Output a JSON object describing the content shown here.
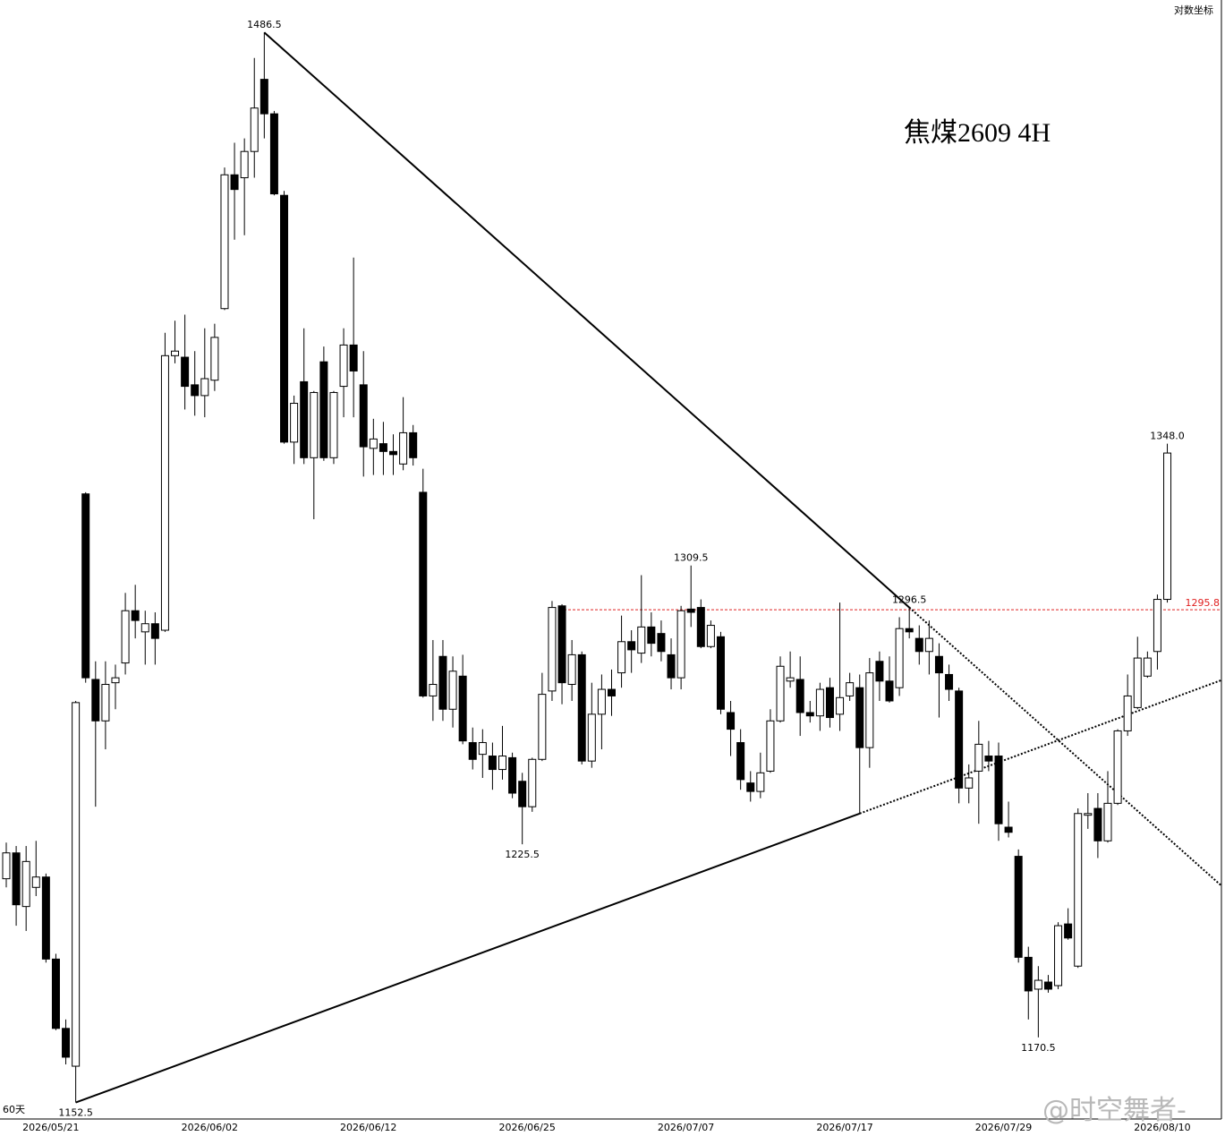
{
  "chart_data": {
    "type": "candlestick",
    "title": "焦煤2609  4H",
    "scale_label": "对数坐标",
    "period_label": "60天",
    "watermark": "@时空舞者-",
    "log": true,
    "ylim": [
      1148,
      1498
    ],
    "up_color": "#ffffff",
    "down_color": "#000000",
    "categories": [
      null,
      null,
      null,
      null,
      "2026/05/21",
      null,
      null,
      null,
      null,
      null,
      null,
      null,
      null,
      null,
      null,
      null,
      null,
      null,
      null,
      null,
      "2026/06/02",
      null,
      null,
      null,
      null,
      null,
      null,
      null,
      null,
      null,
      null,
      null,
      null,
      null,
      null,
      null,
      "2026/06/12",
      null,
      null,
      null,
      null,
      null,
      null,
      null,
      null,
      null,
      null,
      null,
      null,
      null,
      null,
      null,
      "2026/06/25",
      null,
      null,
      null,
      null,
      null,
      null,
      null,
      null,
      null,
      null,
      null,
      null,
      null,
      null,
      null,
      "2026/07/07",
      null,
      null,
      null,
      null,
      null,
      null,
      null,
      null,
      null,
      null,
      null,
      null,
      null,
      null,
      null,
      "2026/07/17",
      null,
      null,
      null,
      null,
      null,
      null,
      null,
      null,
      null,
      null,
      null,
      null,
      null,
      null,
      null,
      "2026/07/29",
      null,
      null,
      null,
      null,
      null,
      null,
      null,
      null,
      null,
      null,
      null,
      null,
      null,
      null,
      null,
      "2026/08/10",
      null
    ],
    "candles": [
      [
        1215.5,
        1226,
        1213,
        1223
      ],
      [
        1223,
        1225,
        1202,
        1208
      ],
      [
        1207.5,
        1225,
        1200.5,
        1220.5
      ],
      [
        1213,
        1226.5,
        1210.5,
        1216
      ],
      [
        1216,
        1217,
        1191.5,
        1192.5
      ],
      [
        1192.5,
        1194,
        1172.5,
        1173
      ],
      [
        1173,
        1175.5,
        1163,
        1165
      ],
      [
        1162.5,
        1268,
        1152.5,
        1267.5
      ],
      [
        1332,
        1332.5,
        1273.5,
        1275
      ],
      [
        1274.5,
        1280,
        1236.5,
        1262
      ],
      [
        1262,
        1280,
        1253.5,
        1273
      ],
      [
        1273.5,
        1279,
        1265.5,
        1275
      ],
      [
        1279.5,
        1301,
        1276,
        1295.5
      ],
      [
        1295.5,
        1303.5,
        1287,
        1292.5
      ],
      [
        1289,
        1295.5,
        1279,
        1291.5
      ],
      [
        1291.5,
        1295,
        1279,
        1287
      ],
      [
        1289.5,
        1384,
        1289,
        1376.5
      ],
      [
        1376.5,
        1388,
        1374,
        1378
      ],
      [
        1376,
        1390,
        1359,
        1366.5
      ],
      [
        1367,
        1378,
        1357,
        1363.5
      ],
      [
        1363.5,
        1385.5,
        1356.5,
        1369
      ],
      [
        1368.5,
        1387,
        1365,
        1382.5
      ],
      [
        1392,
        1439.5,
        1391.5,
        1437
      ],
      [
        1437,
        1448,
        1415,
        1432
      ],
      [
        1436,
        1449.5,
        1416.5,
        1445
      ],
      [
        1445,
        1477.5,
        1436,
        1460
      ],
      [
        1470,
        1486.5,
        1449.5,
        1458
      ],
      [
        1458,
        1459,
        1430,
        1430.5
      ],
      [
        1430,
        1431.5,
        1348,
        1348.5
      ],
      [
        1348.5,
        1363.5,
        1341.5,
        1361
      ],
      [
        1368,
        1385.5,
        1341.5,
        1343.5
      ],
      [
        1343.5,
        1365,
        1324,
        1364.5
      ],
      [
        1374.5,
        1379.5,
        1342.5,
        1343.5
      ],
      [
        1343.5,
        1365,
        1341.5,
        1364.5
      ],
      [
        1366.5,
        1385.5,
        1356.5,
        1380
      ],
      [
        1380,
        1409,
        1356.5,
        1371.5
      ],
      [
        1367,
        1378,
        1337.5,
        1347
      ],
      [
        1346.5,
        1356,
        1338,
        1349.5
      ],
      [
        1348,
        1355,
        1338,
        1345.5
      ],
      [
        1345.5,
        1351,
        1338,
        1344.5
      ],
      [
        1341.5,
        1363,
        1339.5,
        1351.5
      ],
      [
        1351.5,
        1354,
        1341,
        1343.5
      ],
      [
        1332.5,
        1340,
        1269,
        1269.5
      ],
      [
        1269.5,
        1286.5,
        1262,
        1273
      ],
      [
        1281.5,
        1286.5,
        1262,
        1265.5
      ],
      [
        1265.5,
        1281.5,
        1260,
        1277
      ],
      [
        1275.5,
        1282,
        1255,
        1256
      ],
      [
        1255.5,
        1260,
        1247.5,
        1250.5
      ],
      [
        1252,
        1259.5,
        1245,
        1255.5
      ],
      [
        1251.5,
        1255.5,
        1241.5,
        1247.5
      ],
      [
        1247.5,
        1260.5,
        1244.5,
        1251.5
      ],
      [
        1251,
        1252.5,
        1239,
        1240.5
      ],
      [
        1244,
        1246.5,
        1225.5,
        1236.5
      ],
      [
        1236.5,
        1251,
        1235,
        1250.5
      ],
      [
        1250.5,
        1276.5,
        1250,
        1270
      ],
      [
        1271,
        1298.5,
        1268,
        1296.5
      ],
      [
        1297,
        1297.5,
        1267,
        1273.5
      ],
      [
        1273,
        1286.5,
        1268,
        1282
      ],
      [
        1282,
        1283,
        1249,
        1250
      ],
      [
        1250,
        1273.5,
        1248,
        1264
      ],
      [
        1264,
        1276,
        1253.5,
        1271.5
      ],
      [
        1271.5,
        1277.5,
        1263.5,
        1269.5
      ],
      [
        1276.5,
        1294,
        1272,
        1286
      ],
      [
        1286,
        1289.5,
        1276.5,
        1283.5
      ],
      [
        1282.5,
        1306.5,
        1279.5,
        1290.5
      ],
      [
        1290.5,
        1295,
        1281.5,
        1285.5
      ],
      [
        1288.5,
        1292.5,
        1280,
        1283
      ],
      [
        1282,
        1287,
        1271.5,
        1275
      ],
      [
        1275,
        1297,
        1271.5,
        1295.5
      ],
      [
        1296,
        1309.5,
        1290.5,
        1295
      ],
      [
        1296.5,
        1299,
        1284,
        1284.5
      ],
      [
        1284.5,
        1292.5,
        1284,
        1291
      ],
      [
        1287.5,
        1289,
        1264,
        1265.5
      ],
      [
        1264.5,
        1268,
        1251.5,
        1259.5
      ],
      [
        1255.5,
        1259.5,
        1241.5,
        1244.5
      ],
      [
        1243.5,
        1247,
        1238,
        1241
      ],
      [
        1241,
        1252.5,
        1239,
        1246.5
      ],
      [
        1247,
        1265.5,
        1246.5,
        1262
      ],
      [
        1262,
        1281.5,
        1261.5,
        1278.5
      ],
      [
        1274,
        1283,
        1272,
        1275
      ],
      [
        1274.5,
        1281.5,
        1257.5,
        1264.5
      ],
      [
        1264.5,
        1268,
        1261.5,
        1263.5
      ],
      [
        1263.5,
        1273.5,
        1259,
        1271.5
      ],
      [
        1272,
        1275,
        1260,
        1263
      ],
      [
        1264,
        1298,
        1259,
        1269
      ],
      [
        1269.5,
        1276.5,
        1268,
        1273.5
      ],
      [
        1272,
        1276,
        1234.5,
        1254
      ],
      [
        1254,
        1281,
        1248,
        1276.5
      ],
      [
        1280,
        1283,
        1268,
        1274
      ],
      [
        1274,
        1281.5,
        1267.5,
        1268
      ],
      [
        1272,
        1293.5,
        1269.5,
        1290
      ],
      [
        1290,
        1296.5,
        1287,
        1289
      ],
      [
        1287,
        1291,
        1279,
        1283
      ],
      [
        1283,
        1292.5,
        1276,
        1287
      ],
      [
        1281.5,
        1285.5,
        1263,
        1276.5
      ],
      [
        1276,
        1279,
        1268,
        1271.5
      ],
      [
        1271,
        1272,
        1237.5,
        1242
      ],
      [
        1242,
        1249,
        1237.5,
        1245
      ],
      [
        1247,
        1262,
        1231.5,
        1255
      ],
      [
        1251.5,
        1256,
        1247,
        1250
      ],
      [
        1251.5,
        1255.5,
        1226.5,
        1231.5
      ],
      [
        1230.5,
        1238,
        1227.5,
        1229
      ],
      [
        1222,
        1224,
        1191.5,
        1193
      ],
      [
        1193,
        1196,
        1175.5,
        1183.5
      ],
      [
        1184,
        1190.5,
        1170.5,
        1186.5
      ],
      [
        1186,
        1188,
        1183,
        1184
      ],
      [
        1185,
        1203,
        1184,
        1202
      ],
      [
        1202.5,
        1207,
        1198,
        1198.5
      ],
      [
        1190.5,
        1236,
        1190,
        1234.5
      ],
      [
        1234,
        1240.5,
        1230,
        1234.5
      ],
      [
        1236,
        1240.5,
        1221.5,
        1226.5
      ],
      [
        1226.5,
        1247,
        1226,
        1237.5
      ],
      [
        1237.5,
        1259.5,
        1237,
        1259
      ],
      [
        1259,
        1276,
        1257.5,
        1269.5
      ],
      [
        1266,
        1287.5,
        1265.5,
        1281
      ],
      [
        1275.5,
        1283,
        1275,
        1281
      ],
      [
        1283,
        1300.5,
        1277.5,
        1299
      ],
      [
        1299,
        1348,
        1298,
        1345
      ]
    ],
    "annotations": [
      1486.5,
      1309.5,
      1296.5,
      {
        "value": 1348,
        "label": "1348.0"
      },
      1225.5,
      1170.5,
      1152.5
    ],
    "hline": {
      "value": 1295.8,
      "color": "#e02020"
    }
  }
}
